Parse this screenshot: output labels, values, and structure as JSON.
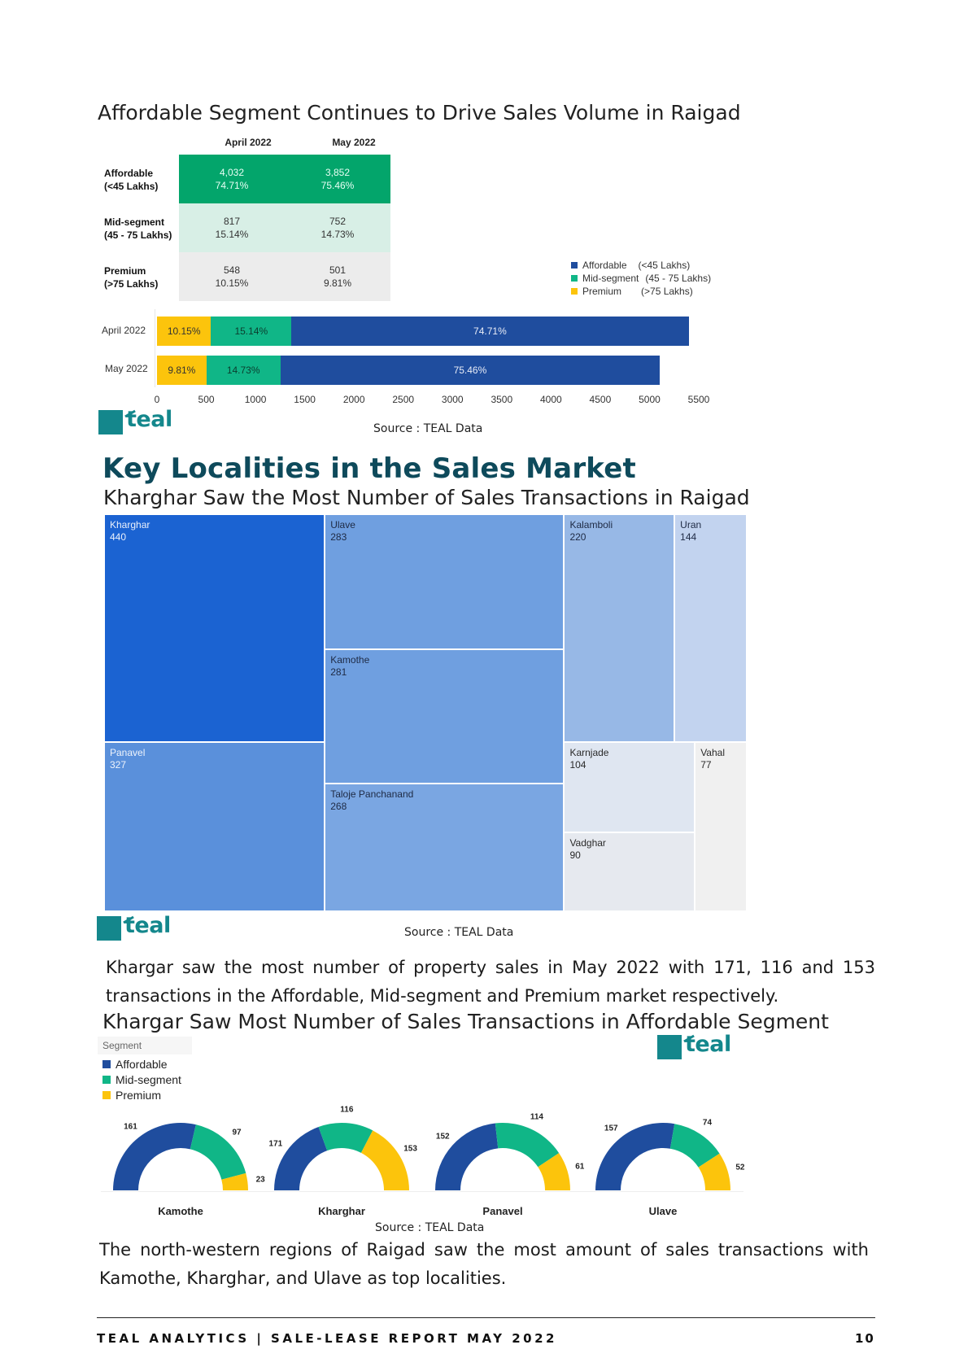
{
  "colors": {
    "affordable": "#1f4d9e",
    "mid": "#10b687",
    "premium": "#fcc40c",
    "teal": "#14878c",
    "heading": "#0e4a5b"
  },
  "section1": {
    "title": "Affordable Segment Continues to Drive Sales Volume in Raigad",
    "table": {
      "columns": [
        "April 2022",
        "May 2022"
      ],
      "rows": [
        {
          "label_line1": "Affordable",
          "label_line2": "(<45 Lakhs)",
          "cells": [
            [
              "4,032",
              "74.71%"
            ],
            [
              "3,852",
              "75.46%"
            ]
          ]
        },
        {
          "label_line1": "Mid-segment",
          "label_line2": "(45 - 75 Lakhs)",
          "cells": [
            [
              "817",
              "15.14%"
            ],
            [
              "752",
              "14.73%"
            ]
          ]
        },
        {
          "label_line1": "Premium",
          "label_line2": "(>75 Lakhs)",
          "cells": [
            [
              "548",
              "10.15%"
            ],
            [
              "501",
              "9.81%"
            ]
          ]
        }
      ]
    },
    "legend": [
      {
        "name": "Affordable",
        "range": "(<45 Lakhs)",
        "color": "#1f4d9e"
      },
      {
        "name": "Mid-segment",
        "range": "(45 - 75 Lakhs)",
        "color": "#10b687"
      },
      {
        "name": "Premium",
        "range": "(>75 Lakhs)",
        "color": "#fcc40c"
      }
    ],
    "source": "Source : TEAL Data"
  },
  "logo_text": "teal",
  "section2": {
    "heading": "Key Localities in the Sales Market",
    "title": "Kharghar Saw the Most Number of Sales Transactions in Raigad",
    "source": "Source : TEAL Data"
  },
  "paragraph1": "Khargar saw the most number of property sales in May 2022 with 171, 116 and 153 transactions in the Affordable, Mid-segment and Premium market respectively.",
  "section3": {
    "title": "Khargar Saw Most Number of Sales Transactions in Affordable Segment",
    "legend_title": "Segment",
    "legend": [
      "Affordable",
      "Mid-segment",
      "Premium"
    ],
    "source": "Source : TEAL Data"
  },
  "paragraph2": "The north-western regions of Raigad saw the most amount of sales transactions with Kamothe, Kharghar, and Ulave as top localities.",
  "footer": {
    "left": "TEAL ANALYTICS | SALE-LEASE REPORT MAY 2022",
    "page": "10"
  },
  "chart_data": [
    {
      "type": "bar",
      "orientation": "horizontal",
      "stacked": true,
      "categories": [
        "April 2022",
        "May 2022"
      ],
      "series": [
        {
          "name": "Premium",
          "values": [
            548,
            501
          ],
          "labels": [
            "10.15%",
            "9.81%"
          ]
        },
        {
          "name": "Mid-segment",
          "values": [
            817,
            752
          ],
          "labels": [
            "15.14%",
            "14.73%"
          ]
        },
        {
          "name": "Affordable",
          "values": [
            4032,
            3852
          ],
          "labels": [
            "74.71%",
            "75.46%"
          ]
        }
      ],
      "xticks": [
        0,
        500,
        1000,
        1500,
        2000,
        2500,
        3000,
        3500,
        4000,
        4500,
        5000,
        5500
      ],
      "xlim": [
        0,
        5500
      ],
      "grid": false,
      "legend": "top-right"
    },
    {
      "type": "treemap",
      "items": [
        {
          "name": "Kharghar",
          "value": 440
        },
        {
          "name": "Panavel",
          "value": 327
        },
        {
          "name": "Ulave",
          "value": 283
        },
        {
          "name": "Kamothe",
          "value": 281
        },
        {
          "name": "Taloje Panchanand",
          "value": 268
        },
        {
          "name": "Kalamboli",
          "value": 220
        },
        {
          "name": "Uran",
          "value": 144
        },
        {
          "name": "Karnjade",
          "value": 104
        },
        {
          "name": "Vahal",
          "value": 77
        },
        {
          "name": "Vadghar",
          "value": 90
        }
      ]
    },
    {
      "type": "pie",
      "variant": "half-donut",
      "legend": "top-left",
      "categories": [
        "Kamothe",
        "Kharghar",
        "Panavel",
        "Ulave"
      ],
      "series": [
        {
          "name": "Affordable",
          "values": [
            161,
            171,
            152,
            157
          ]
        },
        {
          "name": "Mid-segment",
          "values": [
            97,
            116,
            114,
            74
          ]
        },
        {
          "name": "Premium",
          "values": [
            23,
            153,
            61,
            52
          ]
        }
      ]
    }
  ]
}
